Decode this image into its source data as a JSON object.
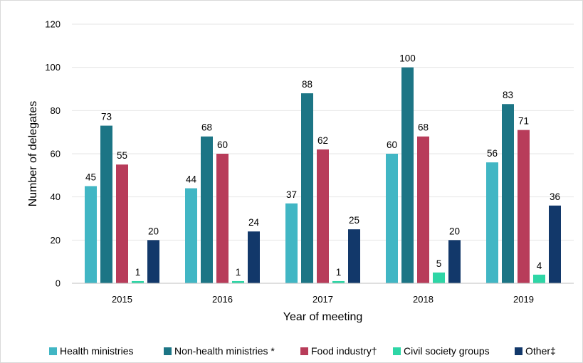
{
  "chart_data": {
    "type": "bar",
    "xlabel": "Year of meeting",
    "ylabel": "Number of delegates",
    "ylim": [
      0,
      120
    ],
    "yticks": [
      0,
      20,
      40,
      60,
      80,
      100,
      120
    ],
    "grid": "horizontal",
    "legend_position": "bottom",
    "categories": [
      "2015",
      "2016",
      "2017",
      "2018",
      "2019"
    ],
    "series": [
      {
        "name": "Health ministries",
        "color": "#41b6c4",
        "values": [
          45,
          44,
          37,
          60,
          56
        ]
      },
      {
        "name": "Non-health ministries *",
        "color": "#1c7585",
        "values": [
          73,
          68,
          88,
          100,
          83
        ]
      },
      {
        "name": "Food industry†",
        "color": "#b83c5a",
        "values": [
          55,
          60,
          62,
          68,
          71
        ]
      },
      {
        "name": "Civil society groups",
        "color": "#2ed6a6",
        "values": [
          1,
          1,
          1,
          5,
          4
        ]
      },
      {
        "name": "Other‡",
        "color": "#12386a",
        "values": [
          20,
          24,
          25,
          20,
          36
        ]
      }
    ]
  }
}
